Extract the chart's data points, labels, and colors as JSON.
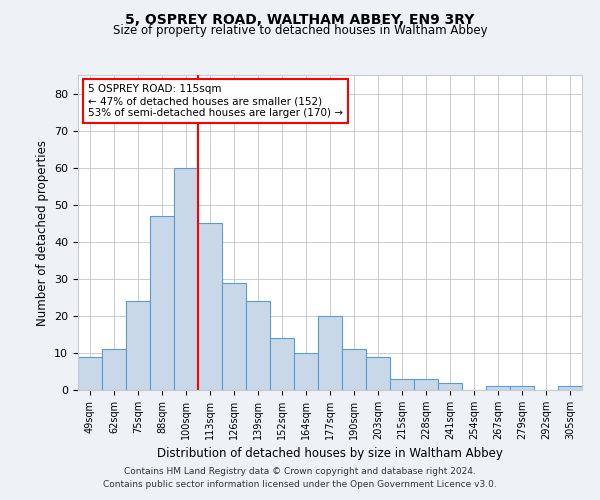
{
  "title1": "5, OSPREY ROAD, WALTHAM ABBEY, EN9 3RY",
  "title2": "Size of property relative to detached houses in Waltham Abbey",
  "xlabel": "Distribution of detached houses by size in Waltham Abbey",
  "ylabel": "Number of detached properties",
  "categories": [
    "49sqm",
    "62sqm",
    "75sqm",
    "88sqm",
    "100sqm",
    "113sqm",
    "126sqm",
    "139sqm",
    "152sqm",
    "164sqm",
    "177sqm",
    "190sqm",
    "203sqm",
    "215sqm",
    "228sqm",
    "241sqm",
    "254sqm",
    "267sqm",
    "279sqm",
    "292sqm",
    "305sqm"
  ],
  "values": [
    9,
    11,
    24,
    47,
    60,
    45,
    29,
    24,
    14,
    10,
    20,
    11,
    9,
    3,
    3,
    2,
    0,
    1,
    1,
    0,
    1
  ],
  "bar_color": "#c8d8e8",
  "bar_edge_color": "#5b9bd5",
  "ylim": [
    0,
    85
  ],
  "yticks": [
    0,
    10,
    20,
    30,
    40,
    50,
    60,
    70,
    80
  ],
  "grid_color": "#c8cdd4",
  "annotation_text": "5 OSPREY ROAD: 115sqm\n← 47% of detached houses are smaller (152)\n53% of semi-detached houses are larger (170) →",
  "vline_color": "red",
  "annotation_box_color": "white",
  "annotation_box_edge_color": "red",
  "footer1": "Contains HM Land Registry data © Crown copyright and database right 2024.",
  "footer2": "Contains public sector information licensed under the Open Government Licence v3.0.",
  "bg_color": "#eef2f7",
  "plot_bg_color": "#ffffff"
}
